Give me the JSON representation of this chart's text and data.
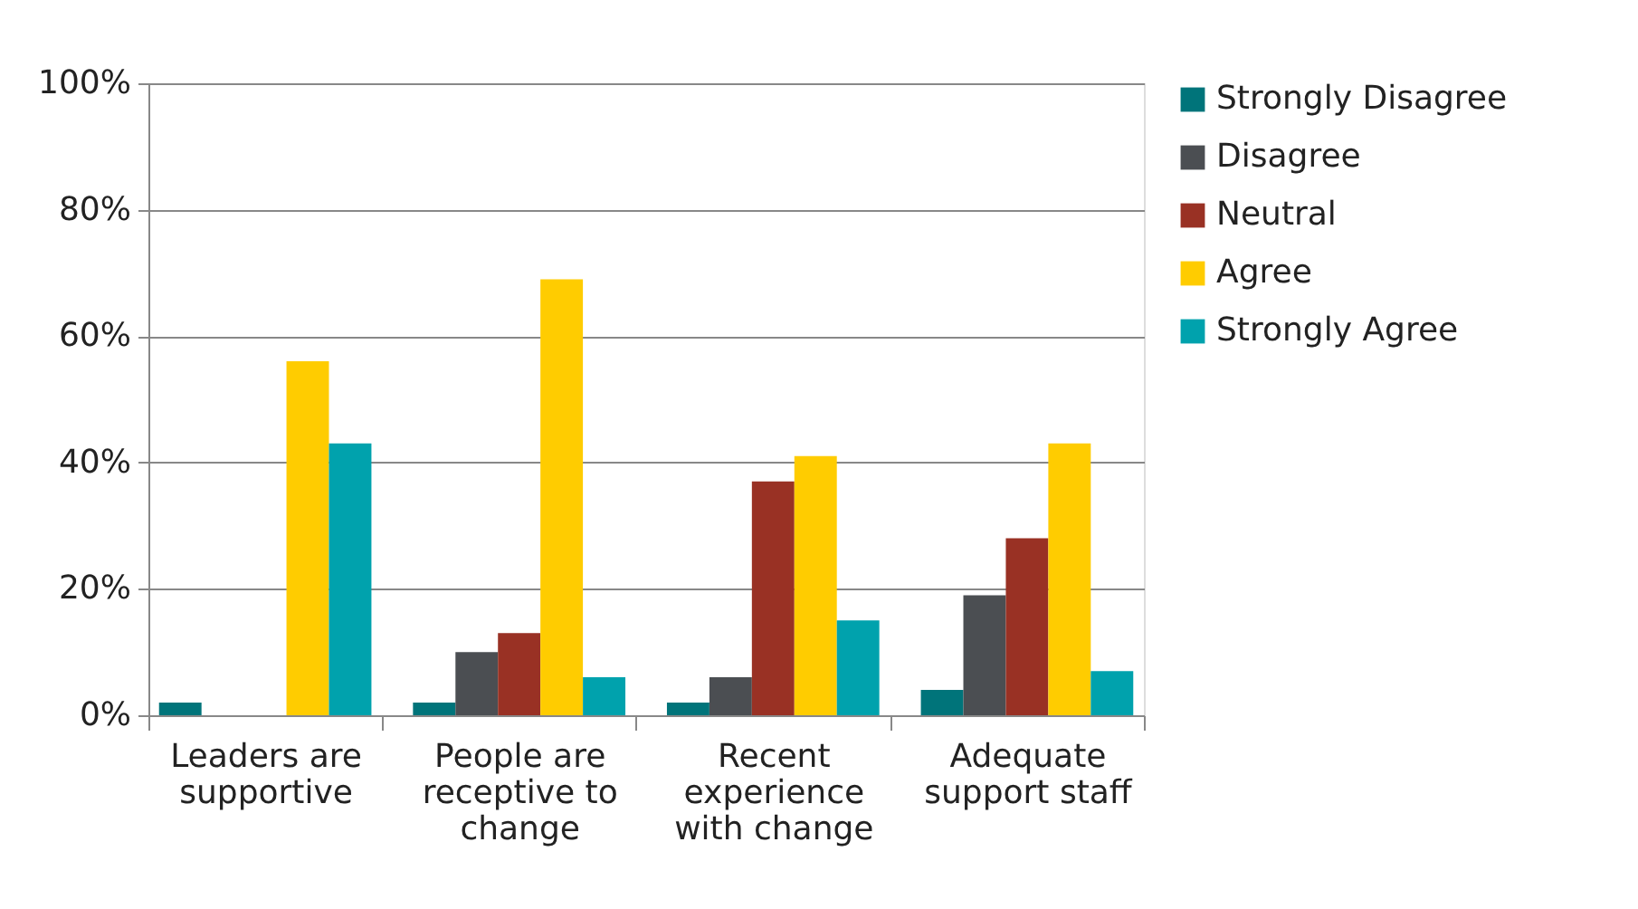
{
  "chart_data": {
    "type": "bar",
    "categories": [
      "Leaders are supportive",
      "People are receptive to change",
      "Recent experience with change",
      "Adequate support staff"
    ],
    "series": [
      {
        "name": "Strongly Disagree",
        "color": "#00747a",
        "values": [
          2,
          2,
          2,
          4
        ]
      },
      {
        "name": "Disagree",
        "color": "#4b4e52",
        "values": [
          0,
          10,
          6,
          19
        ]
      },
      {
        "name": "Neutral",
        "color": "#993124",
        "values": [
          0,
          13,
          37,
          28
        ]
      },
      {
        "name": "Agree",
        "color": "#ffcc00",
        "values": [
          56,
          69,
          41,
          43
        ]
      },
      {
        "name": "Strongly Agree",
        "color": "#00a2ad",
        "values": [
          43,
          6,
          15,
          7
        ]
      }
    ],
    "ylim": [
      0,
      100
    ],
    "yticks": [
      {
        "value": 0,
        "label": "0%"
      },
      {
        "value": 20,
        "label": "20%"
      },
      {
        "value": 40,
        "label": "40%"
      },
      {
        "value": 60,
        "label": "60%"
      },
      {
        "value": 80,
        "label": "80%"
      },
      {
        "value": 100,
        "label": "100%"
      }
    ],
    "grid": "y",
    "legend": "right"
  }
}
